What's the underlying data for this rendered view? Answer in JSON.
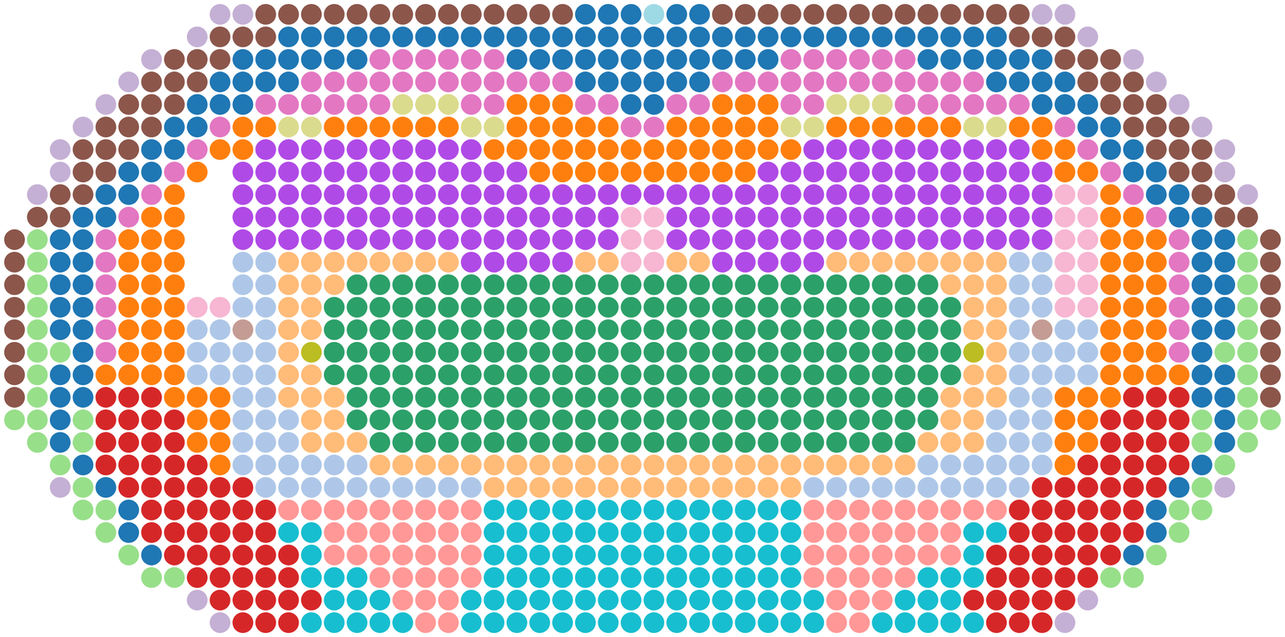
{
  "chart_data": {
    "type": "scatter",
    "tick_labels": false,
    "colors": [
      "#8c564b",
      "#c5b0d5",
      "#1f77b4",
      "#e377c2",
      "#dbdb8d",
      "#ff7f0e",
      "#b04ae6",
      "#f7b6d2",
      "#aec7e8",
      "#ffbb78",
      "#2ca069",
      "#d62728",
      "#17becf",
      "#ff9896",
      "#98df8a",
      "#c49c94",
      "#bcbd22",
      "#9edae5"
    ],
    "cells": [
      [
        null,
        null,
        null,
        null,
        null,
        null,
        null,
        null,
        null,
        1,
        1,
        0,
        0,
        0,
        0,
        0,
        0,
        0,
        0,
        0,
        0,
        0,
        0,
        0,
        0,
        2,
        2,
        2,
        17,
        2,
        2,
        0,
        0,
        0,
        0,
        0,
        0,
        0,
        0,
        0,
        0,
        0,
        0,
        0,
        0,
        1,
        1,
        null,
        null,
        null,
        null,
        null,
        null,
        null,
        null,
        null
      ],
      [
        null,
        null,
        null,
        null,
        null,
        null,
        null,
        null,
        1,
        0,
        0,
        0,
        2,
        2,
        2,
        2,
        2,
        2,
        2,
        2,
        2,
        2,
        2,
        2,
        2,
        2,
        2,
        2,
        2,
        2,
        2,
        2,
        2,
        2,
        2,
        2,
        2,
        2,
        2,
        2,
        2,
        2,
        2,
        2,
        0,
        0,
        0,
        1,
        null,
        null,
        null,
        null,
        null,
        null,
        null,
        null
      ],
      [
        null,
        null,
        null,
        null,
        null,
        null,
        1,
        0,
        0,
        0,
        2,
        2,
        2,
        2,
        2,
        2,
        3,
        3,
        3,
        3,
        3,
        3,
        2,
        2,
        2,
        2,
        2,
        2,
        2,
        2,
        2,
        2,
        2,
        2,
        3,
        3,
        3,
        3,
        3,
        3,
        2,
        2,
        2,
        2,
        2,
        2,
        0,
        0,
        0,
        1,
        null,
        null,
        null,
        null,
        null,
        null
      ],
      [
        null,
        null,
        null,
        null,
        null,
        1,
        0,
        0,
        0,
        2,
        2,
        2,
        2,
        3,
        3,
        3,
        3,
        3,
        3,
        3,
        3,
        3,
        3,
        3,
        3,
        2,
        2,
        2,
        2,
        2,
        2,
        3,
        3,
        3,
        3,
        3,
        3,
        3,
        3,
        3,
        3,
        3,
        3,
        2,
        2,
        2,
        2,
        0,
        0,
        0,
        1,
        null,
        null,
        null,
        null,
        null
      ],
      [
        null,
        null,
        null,
        null,
        1,
        0,
        0,
        0,
        2,
        2,
        2,
        3,
        3,
        3,
        3,
        3,
        3,
        4,
        4,
        4,
        3,
        3,
        5,
        5,
        5,
        3,
        3,
        2,
        2,
        3,
        3,
        5,
        5,
        5,
        3,
        3,
        4,
        4,
        4,
        3,
        3,
        3,
        3,
        3,
        3,
        2,
        2,
        2,
        0,
        0,
        0,
        1,
        null,
        null,
        null,
        null
      ],
      [
        null,
        null,
        null,
        1,
        0,
        0,
        0,
        2,
        2,
        3,
        5,
        5,
        4,
        4,
        5,
        5,
        5,
        5,
        5,
        5,
        4,
        4,
        5,
        5,
        5,
        5,
        5,
        3,
        3,
        5,
        5,
        5,
        5,
        5,
        4,
        4,
        5,
        5,
        5,
        5,
        5,
        5,
        4,
        4,
        5,
        5,
        3,
        2,
        2,
        0,
        0,
        0,
        1,
        null,
        null,
        null
      ],
      [
        null,
        null,
        1,
        0,
        0,
        0,
        2,
        2,
        3,
        5,
        5,
        6,
        6,
        6,
        6,
        6,
        6,
        6,
        6,
        6,
        6,
        5,
        5,
        5,
        5,
        5,
        5,
        5,
        5,
        5,
        5,
        5,
        5,
        5,
        5,
        6,
        6,
        6,
        6,
        6,
        6,
        6,
        6,
        6,
        6,
        5,
        5,
        3,
        2,
        2,
        0,
        0,
        0,
        1,
        null,
        null
      ],
      [
        null,
        null,
        1,
        0,
        0,
        2,
        2,
        3,
        5,
        null,
        6,
        6,
        6,
        6,
        6,
        6,
        6,
        6,
        6,
        6,
        6,
        6,
        6,
        5,
        5,
        5,
        5,
        5,
        5,
        5,
        5,
        5,
        5,
        6,
        6,
        6,
        6,
        6,
        6,
        6,
        6,
        6,
        6,
        6,
        6,
        6,
        5,
        5,
        3,
        2,
        2,
        0,
        0,
        1,
        null,
        null
      ],
      [
        null,
        1,
        0,
        0,
        2,
        2,
        3,
        5,
        null,
        null,
        6,
        6,
        6,
        6,
        6,
        6,
        6,
        6,
        6,
        6,
        6,
        6,
        6,
        6,
        6,
        6,
        6,
        6,
        6,
        6,
        6,
        6,
        6,
        6,
        6,
        6,
        6,
        6,
        6,
        6,
        6,
        6,
        6,
        6,
        6,
        6,
        7,
        7,
        5,
        3,
        2,
        2,
        0,
        0,
        1,
        null
      ],
      [
        null,
        0,
        0,
        2,
        2,
        3,
        5,
        5,
        null,
        null,
        6,
        6,
        6,
        6,
        6,
        6,
        6,
        6,
        6,
        6,
        6,
        6,
        6,
        6,
        6,
        6,
        6,
        7,
        7,
        6,
        6,
        6,
        6,
        6,
        6,
        6,
        6,
        6,
        6,
        6,
        6,
        6,
        6,
        6,
        6,
        6,
        7,
        7,
        5,
        5,
        3,
        2,
        2,
        0,
        0,
        null
      ],
      [
        0,
        14,
        2,
        2,
        3,
        5,
        5,
        5,
        null,
        null,
        6,
        6,
        6,
        6,
        6,
        6,
        6,
        6,
        6,
        6,
        6,
        6,
        6,
        6,
        6,
        6,
        6,
        7,
        7,
        6,
        6,
        6,
        6,
        6,
        6,
        6,
        6,
        6,
        6,
        6,
        6,
        6,
        6,
        6,
        6,
        6,
        7,
        7,
        5,
        5,
        5,
        3,
        2,
        2,
        14,
        0
      ],
      [
        0,
        14,
        2,
        2,
        3,
        5,
        5,
        5,
        null,
        null,
        8,
        8,
        9,
        9,
        9,
        9,
        9,
        9,
        9,
        9,
        6,
        6,
        6,
        6,
        6,
        9,
        9,
        7,
        7,
        9,
        9,
        6,
        6,
        6,
        6,
        6,
        9,
        9,
        9,
        9,
        9,
        9,
        9,
        9,
        8,
        8,
        7,
        7,
        5,
        5,
        5,
        3,
        2,
        2,
        14,
        0
      ],
      [
        0,
        14,
        2,
        2,
        3,
        5,
        5,
        5,
        null,
        null,
        8,
        8,
        9,
        9,
        9,
        10,
        10,
        10,
        10,
        10,
        10,
        10,
        10,
        10,
        10,
        10,
        10,
        10,
        10,
        10,
        10,
        10,
        10,
        10,
        10,
        10,
        10,
        10,
        10,
        10,
        10,
        9,
        9,
        9,
        8,
        8,
        7,
        7,
        5,
        5,
        5,
        3,
        2,
        2,
        14,
        0
      ],
      [
        0,
        14,
        2,
        2,
        3,
        5,
        5,
        5,
        7,
        7,
        8,
        8,
        9,
        9,
        10,
        10,
        10,
        10,
        10,
        10,
        10,
        10,
        10,
        10,
        10,
        10,
        10,
        10,
        10,
        10,
        10,
        10,
        10,
        10,
        10,
        10,
        10,
        10,
        10,
        10,
        10,
        10,
        9,
        9,
        8,
        8,
        7,
        7,
        5,
        5,
        5,
        3,
        2,
        2,
        14,
        0
      ],
      [
        0,
        14,
        2,
        2,
        3,
        5,
        5,
        5,
        8,
        8,
        15,
        8,
        9,
        9,
        10,
        10,
        10,
        10,
        10,
        10,
        10,
        10,
        10,
        10,
        10,
        10,
        10,
        10,
        10,
        10,
        10,
        10,
        10,
        10,
        10,
        10,
        10,
        10,
        10,
        10,
        10,
        10,
        9,
        9,
        8,
        15,
        8,
        8,
        5,
        5,
        5,
        3,
        2,
        2,
        14,
        0
      ],
      [
        0,
        14,
        14,
        2,
        3,
        5,
        5,
        5,
        8,
        8,
        8,
        8,
        9,
        16,
        10,
        10,
        10,
        10,
        10,
        10,
        10,
        10,
        10,
        10,
        10,
        10,
        10,
        10,
        10,
        10,
        10,
        10,
        10,
        10,
        10,
        10,
        10,
        10,
        10,
        10,
        10,
        10,
        16,
        9,
        8,
        8,
        8,
        8,
        5,
        5,
        5,
        3,
        2,
        14,
        14,
        0
      ],
      [
        0,
        14,
        2,
        2,
        5,
        5,
        5,
        5,
        8,
        8,
        8,
        8,
        9,
        9,
        10,
        10,
        10,
        10,
        10,
        10,
        10,
        10,
        10,
        10,
        10,
        10,
        10,
        10,
        10,
        10,
        10,
        10,
        10,
        10,
        10,
        10,
        10,
        10,
        10,
        10,
        10,
        10,
        9,
        9,
        8,
        8,
        8,
        8,
        5,
        5,
        5,
        5,
        2,
        2,
        14,
        0
      ],
      [
        0,
        14,
        2,
        2,
        11,
        11,
        11,
        5,
        5,
        5,
        8,
        8,
        9,
        9,
        9,
        10,
        10,
        10,
        10,
        10,
        10,
        10,
        10,
        10,
        10,
        10,
        10,
        10,
        10,
        10,
        10,
        10,
        10,
        10,
        10,
        10,
        10,
        10,
        10,
        10,
        10,
        9,
        9,
        9,
        8,
        8,
        5,
        5,
        5,
        11,
        11,
        11,
        2,
        2,
        14,
        0
      ],
      [
        14,
        14,
        2,
        14,
        11,
        11,
        11,
        11,
        5,
        5,
        8,
        8,
        8,
        9,
        9,
        10,
        10,
        10,
        10,
        10,
        10,
        10,
        10,
        10,
        10,
        10,
        10,
        10,
        10,
        10,
        10,
        10,
        10,
        10,
        10,
        10,
        10,
        10,
        10,
        10,
        10,
        9,
        9,
        8,
        8,
        8,
        5,
        5,
        11,
        11,
        11,
        11,
        14,
        2,
        14,
        14
      ],
      [
        null,
        14,
        2,
        14,
        11,
        11,
        11,
        11,
        5,
        5,
        8,
        8,
        8,
        9,
        9,
        9,
        10,
        10,
        10,
        10,
        10,
        10,
        10,
        10,
        10,
        10,
        10,
        10,
        10,
        10,
        10,
        10,
        10,
        10,
        10,
        10,
        10,
        10,
        10,
        10,
        9,
        9,
        9,
        8,
        8,
        8,
        5,
        5,
        11,
        11,
        11,
        11,
        14,
        2,
        14,
        null
      ],
      [
        null,
        null,
        14,
        2,
        11,
        11,
        11,
        11,
        11,
        5,
        8,
        8,
        8,
        8,
        8,
        8,
        9,
        9,
        9,
        9,
        9,
        9,
        9,
        9,
        9,
        9,
        9,
        9,
        9,
        9,
        9,
        9,
        9,
        9,
        9,
        9,
        9,
        9,
        9,
        9,
        8,
        8,
        8,
        8,
        8,
        8,
        5,
        11,
        11,
        11,
        11,
        11,
        2,
        14,
        null,
        null
      ],
      [
        null,
        null,
        1,
        14,
        2,
        11,
        11,
        11,
        11,
        11,
        11,
        8,
        8,
        8,
        8,
        8,
        8,
        8,
        8,
        8,
        8,
        9,
        9,
        9,
        9,
        9,
        9,
        9,
        9,
        9,
        9,
        9,
        9,
        9,
        9,
        8,
        8,
        8,
        8,
        8,
        8,
        8,
        8,
        8,
        8,
        11,
        11,
        11,
        11,
        11,
        11,
        2,
        14,
        1,
        null,
        null
      ],
      [
        null,
        null,
        null,
        14,
        14,
        2,
        11,
        11,
        11,
        11,
        11,
        11,
        13,
        13,
        13,
        13,
        13,
        13,
        13,
        13,
        13,
        12,
        12,
        12,
        12,
        12,
        12,
        12,
        12,
        12,
        12,
        12,
        12,
        12,
        12,
        13,
        13,
        13,
        13,
        13,
        13,
        13,
        13,
        13,
        11,
        11,
        11,
        11,
        11,
        11,
        2,
        14,
        14,
        null,
        null,
        null
      ],
      [
        null,
        null,
        null,
        null,
        14,
        2,
        11,
        11,
        11,
        11,
        11,
        11,
        12,
        12,
        13,
        13,
        13,
        13,
        13,
        13,
        13,
        12,
        12,
        12,
        12,
        12,
        12,
        12,
        12,
        12,
        12,
        12,
        12,
        12,
        12,
        13,
        13,
        13,
        13,
        13,
        13,
        13,
        12,
        12,
        11,
        11,
        11,
        11,
        11,
        11,
        2,
        14,
        null,
        null,
        null,
        null
      ],
      [
        null,
        null,
        null,
        null,
        null,
        14,
        2,
        11,
        11,
        11,
        11,
        11,
        11,
        12,
        13,
        13,
        13,
        13,
        13,
        13,
        13,
        12,
        12,
        12,
        12,
        12,
        12,
        12,
        12,
        12,
        12,
        12,
        12,
        12,
        12,
        13,
        13,
        13,
        13,
        13,
        13,
        13,
        12,
        11,
        11,
        11,
        11,
        11,
        11,
        2,
        14,
        null,
        null,
        null,
        null,
        null
      ],
      [
        null,
        null,
        null,
        null,
        null,
        null,
        14,
        14,
        11,
        11,
        11,
        11,
        11,
        12,
        12,
        12,
        13,
        13,
        13,
        13,
        13,
        12,
        12,
        12,
        12,
        12,
        12,
        12,
        12,
        12,
        12,
        12,
        12,
        12,
        12,
        13,
        13,
        13,
        13,
        13,
        12,
        12,
        12,
        11,
        11,
        11,
        11,
        11,
        14,
        14,
        null,
        null,
        null,
        null,
        null,
        null
      ],
      [
        null,
        null,
        null,
        null,
        null,
        null,
        null,
        null,
        1,
        11,
        11,
        11,
        11,
        11,
        12,
        12,
        12,
        13,
        13,
        13,
        12,
        12,
        12,
        12,
        12,
        12,
        12,
        12,
        12,
        12,
        12,
        12,
        12,
        12,
        12,
        12,
        13,
        13,
        13,
        12,
        12,
        12,
        11,
        11,
        11,
        11,
        11,
        1,
        null,
        null,
        null,
        null,
        null,
        null,
        null,
        null
      ],
      [
        null,
        null,
        null,
        null,
        null,
        null,
        null,
        null,
        null,
        1,
        11,
        11,
        11,
        12,
        12,
        12,
        12,
        12,
        13,
        13,
        12,
        12,
        12,
        12,
        12,
        12,
        12,
        12,
        12,
        12,
        12,
        12,
        12,
        12,
        12,
        12,
        13,
        13,
        12,
        12,
        12,
        12,
        12,
        11,
        11,
        11,
        1,
        null,
        null,
        null,
        null,
        null,
        null,
        null,
        null,
        null
      ]
    ]
  }
}
